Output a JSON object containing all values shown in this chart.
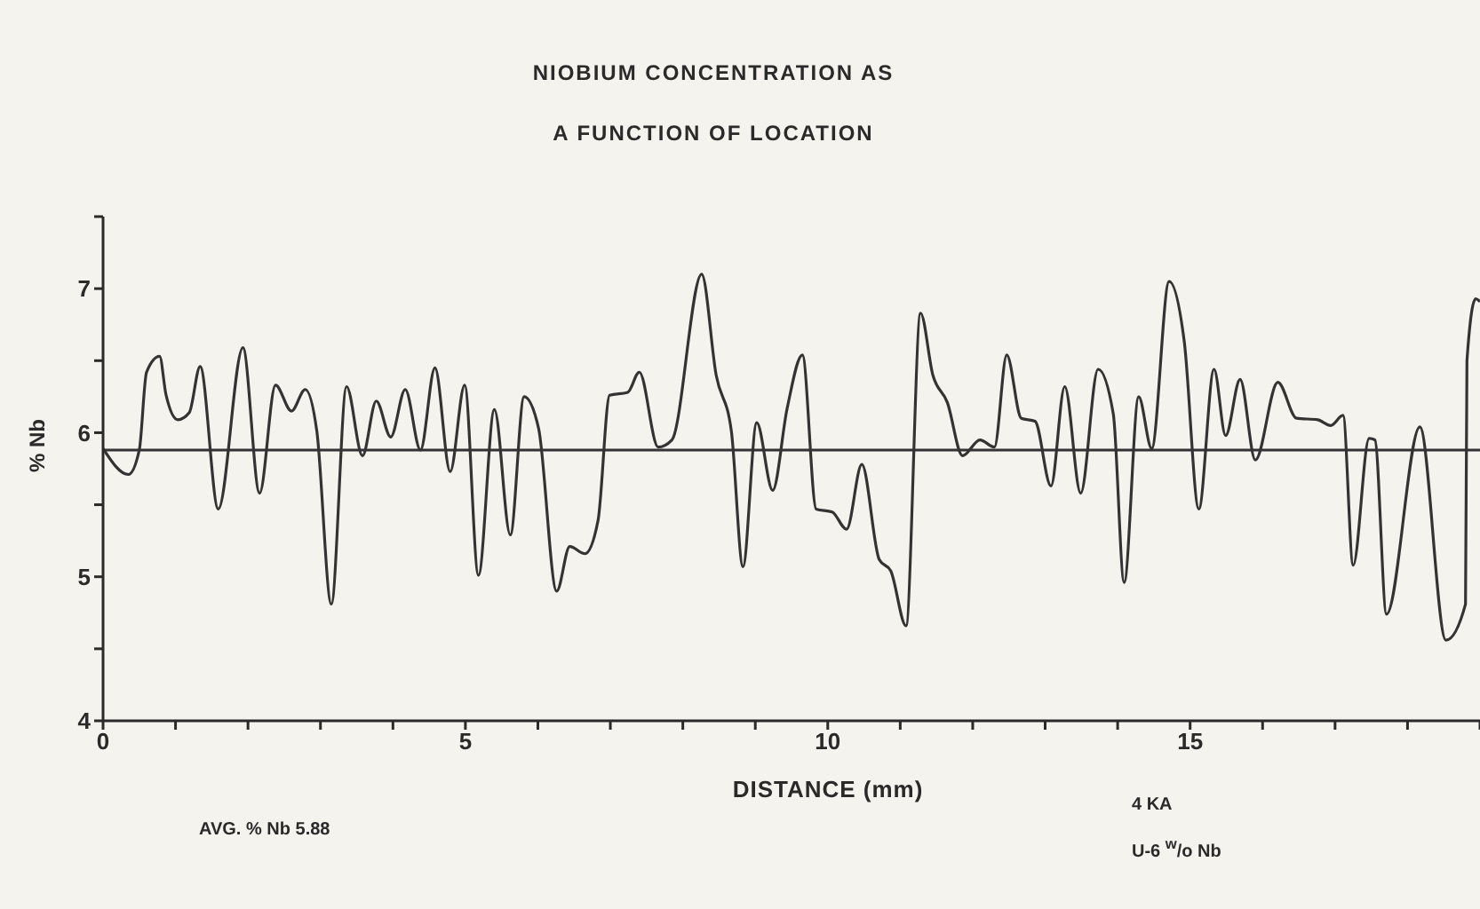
{
  "chart_data": {
    "type": "line",
    "title": "NIOBIUM CONCENTRATION AS\nA FUNCTION OF LOCATION",
    "xlabel": "DISTANCE (mm)",
    "ylabel": "% Nb",
    "annotations": [
      "AVG. % Nb 5.88",
      "4 KA",
      "U-6 $^{w}$/o Nb"
    ],
    "xlim": [
      0,
      19
    ],
    "ylim": [
      4,
      7.5
    ],
    "xticks": [
      0,
      {
        "value": 1,
        "label": null
      },
      {
        "value": 2,
        "label": null
      },
      {
        "value": 3,
        "label": null
      },
      {
        "value": 4,
        "label": null
      },
      5,
      {
        "value": 6,
        "label": null
      },
      {
        "value": 7,
        "label": null
      },
      {
        "value": 8,
        "label": null
      },
      {
        "value": 9,
        "label": null
      },
      10,
      {
        "value": 11,
        "label": null
      },
      {
        "value": 12,
        "label": null
      },
      {
        "value": 13,
        "label": null
      },
      {
        "value": 14,
        "label": null
      },
      15,
      {
        "value": 16,
        "label": null
      },
      {
        "value": 17,
        "label": null
      },
      {
        "value": 18,
        "label": null
      },
      {
        "value": 19,
        "label": null
      }
    ],
    "yticks": [
      4,
      {
        "value": 4.5,
        "label": null
      },
      5,
      {
        "value": 5.5,
        "label": null
      },
      6,
      {
        "value": 6.5,
        "label": null
      },
      7,
      {
        "value": 7.5,
        "label": null
      }
    ],
    "grid": false,
    "legend": false,
    "ref_lines": [
      {
        "axis": "y",
        "value": 5.88,
        "color": "#333333"
      }
    ],
    "series": [
      {
        "color": "#333333",
        "x": [
          0,
          0.35,
          0.5,
          0.6,
          0.78,
          0.87,
          1.03,
          1.19,
          1.34,
          1.59,
          1.93,
          2.16,
          2.38,
          2.6,
          2.79,
          2.95,
          3.15,
          3.36,
          3.58,
          3.77,
          3.97,
          4.17,
          4.38,
          4.58,
          4.79,
          4.99,
          5.18,
          5.4,
          5.62,
          5.81,
          6.01,
          6.26,
          6.44,
          6.65,
          6.83,
          6.99,
          7.24,
          7.4,
          7.66,
          7.85,
          8.26,
          8.46,
          8.67,
          8.83,
          9.02,
          9.24,
          9.44,
          9.65,
          9.84,
          10.06,
          10.26,
          10.47,
          10.71,
          10.87,
          11.08,
          11.28,
          11.45,
          11.65,
          11.86,
          12.1,
          12.3,
          12.47,
          12.67,
          12.86,
          13.08,
          13.27,
          13.49,
          13.73,
          13.94,
          14.09,
          14.29,
          14.47,
          14.71,
          14.92,
          15.12,
          15.33,
          15.49,
          15.69,
          15.9,
          16.21,
          16.47,
          16.76,
          16.94,
          17.11,
          17.25,
          17.47,
          17.55,
          17.71,
          18.17,
          18.53,
          18.8,
          18.82,
          18.94,
          19
        ],
        "values": [
          5.89,
          5.71,
          5.88,
          6.42,
          6.53,
          6.26,
          6.09,
          6.14,
          6.46,
          5.47,
          6.59,
          5.58,
          6.33,
          6.15,
          6.3,
          6.01,
          4.81,
          6.32,
          5.84,
          6.22,
          5.97,
          6.3,
          5.88,
          6.45,
          5.73,
          6.33,
          5.01,
          6.16,
          5.29,
          6.25,
          6.03,
          4.9,
          5.21,
          5.16,
          5.39,
          6.26,
          6.28,
          6.42,
          5.9,
          5.95,
          7.1,
          6.4,
          6.01,
          5.07,
          6.07,
          5.6,
          6.17,
          6.54,
          5.47,
          5.45,
          5.33,
          5.78,
          5.12,
          5.04,
          4.66,
          6.83,
          6.4,
          6.21,
          5.84,
          5.95,
          5.9,
          6.54,
          6.1,
          6.08,
          5.63,
          6.32,
          5.58,
          6.44,
          6.13,
          4.96,
          6.25,
          5.89,
          7.05,
          6.63,
          5.47,
          6.44,
          5.98,
          6.37,
          5.81,
          6.35,
          6.1,
          6.09,
          6.05,
          6.12,
          5.08,
          5.96,
          5.95,
          4.74,
          6.04,
          4.56,
          4.81,
          6.5,
          6.93,
          6.91
        ]
      }
    ]
  }
}
